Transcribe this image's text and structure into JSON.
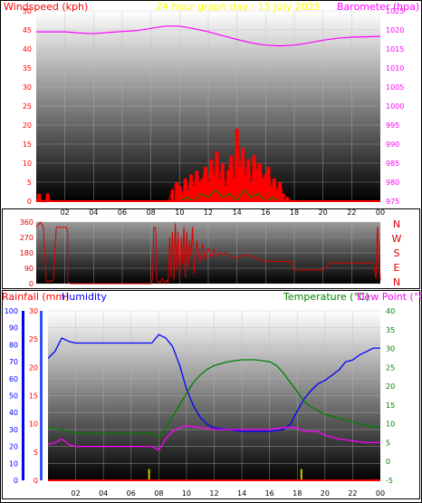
{
  "colors": {
    "wind": "#ff0000",
    "gust": "#008000",
    "barometer": "#ff00ff",
    "title": "#ffff00",
    "direction": "#dd0000",
    "humidity": "#0000ff",
    "temperature": "#008000",
    "dewpoint": "#ff00ff",
    "rain": "#ff0000",
    "rainfall_bar": "#d4c000",
    "frame_bg": "#ffffff"
  },
  "chart_data": [
    {
      "type": "line",
      "title": "24 hour graph day : 15 July 2025",
      "left_axis_label": "Windspeed (kph)",
      "right_axis_label": "Barometer (hpa)",
      "y_left_ticks": [
        0,
        5,
        10,
        15,
        20,
        25,
        30,
        35,
        40,
        45,
        50
      ],
      "y_left_range": [
        0,
        50
      ],
      "y_right_ticks": [
        975,
        980,
        985,
        990,
        995,
        1000,
        1005,
        1010,
        1015,
        1020,
        1025
      ],
      "y_right_range": [
        975,
        1025
      ],
      "x_ticks": [
        "02",
        "04",
        "06",
        "08",
        "10",
        "12",
        "14",
        "16",
        "18",
        "20",
        "22",
        "00"
      ],
      "x_range": [
        0,
        24
      ],
      "series": [
        {
          "key": "barometer",
          "axis": "right",
          "x": [
            0,
            1,
            2,
            3,
            4,
            5,
            6,
            7,
            8,
            9,
            10,
            11,
            12,
            13,
            14,
            15,
            16,
            17,
            18,
            19,
            20,
            21,
            22,
            23,
            24
          ],
          "y": [
            1019.5,
            1019.5,
            1019.5,
            1019.2,
            1019,
            1019.3,
            1019.6,
            1019.8,
            1020.4,
            1021,
            1021,
            1020.3,
            1019.5,
            1018.5,
            1017.5,
            1016.6,
            1016,
            1015.8,
            1016,
            1016.6,
            1017.3,
            1017.8,
            1018.1,
            1018.2,
            1018.3
          ]
        },
        {
          "key": "windspeed",
          "axis": "left",
          "x": [
            0,
            0.2,
            0.4,
            0.6,
            0.8,
            1.0,
            1.2,
            9.2,
            9.5,
            9.8,
            10,
            10.2,
            10.4,
            10.6,
            10.8,
            11,
            11.2,
            11.4,
            11.6,
            11.8,
            12,
            12.2,
            12.4,
            12.6,
            12.8,
            13,
            13.2,
            13.4,
            13.6,
            13.8,
            14,
            14.2,
            14.4,
            14.6,
            14.8,
            15,
            15.2,
            15.4,
            15.6,
            15.8,
            16,
            16.2,
            16.4,
            16.6,
            16.8,
            17,
            17.2,
            17.5,
            17.8,
            18,
            24
          ],
          "y": [
            0,
            2,
            0,
            0,
            2,
            0,
            0,
            0,
            3,
            5,
            4,
            2,
            6,
            3,
            7,
            4,
            8,
            5,
            6,
            9,
            5,
            11,
            7,
            13,
            6,
            10,
            4,
            8,
            12,
            6,
            19,
            9,
            14,
            7,
            11,
            5,
            12,
            8,
            10,
            6,
            7,
            9,
            4,
            6,
            3,
            5,
            2,
            1,
            0,
            0,
            0
          ]
        },
        {
          "key": "gust",
          "axis": "left",
          "x": [
            10,
            10.5,
            11,
            11.5,
            12,
            12.5,
            13,
            13.5,
            14,
            14.5,
            15,
            15.5,
            16,
            16.5,
            17
          ],
          "y": [
            0,
            1,
            0,
            2,
            1,
            3,
            1,
            2,
            0,
            3,
            1,
            2,
            0,
            1,
            0
          ]
        }
      ]
    },
    {
      "type": "line",
      "title": "",
      "right_axis_label": "N W S E N",
      "y_left_ticks": [
        0,
        90,
        180,
        270,
        360
      ],
      "y_left_range": [
        0,
        360
      ],
      "x_range": [
        0,
        24
      ],
      "compass": [
        "N",
        "W",
        "S",
        "E",
        "N"
      ],
      "series": [
        {
          "key": "wind_direction",
          "x": [
            0,
            0.3,
            0.5,
            0.7,
            1.2,
            1.4,
            2.1,
            2.2,
            2.2,
            2.4,
            6.8,
            6.9,
            7.0,
            7.3,
            7.6,
            8.0,
            8.1,
            8.2,
            8.3,
            8.35,
            8.4,
            8.6,
            8.8,
            9.0,
            9.1,
            9.2,
            9.3,
            9.4,
            9.5,
            9.6,
            9.7,
            9.8,
            9.9,
            10,
            10.1,
            10.2,
            10.3,
            10.4,
            10.5,
            10.6,
            10.7,
            10.8,
            10.9,
            11,
            11.2,
            11.4,
            11.6,
            11.8,
            12,
            12.2,
            12.4,
            12.6,
            12.8,
            13,
            13.2,
            13.5,
            14,
            14.5,
            15,
            16,
            17,
            17.8,
            18,
            18.3,
            18.7,
            19,
            19.5,
            20,
            20.5,
            21,
            21.5,
            22,
            22.5,
            23,
            23.5,
            23.7,
            23.8,
            24
          ],
          "y": [
            330,
            360,
            330,
            10,
            20,
            330,
            330,
            300,
            10,
            0,
            0,
            0,
            0,
            0,
            0,
            0,
            20,
            330,
            330,
            300,
            20,
            0,
            30,
            0,
            20,
            10,
            270,
            40,
            300,
            20,
            350,
            80,
            300,
            30,
            270,
            120,
            330,
            40,
            300,
            90,
            250,
            160,
            330,
            60,
            250,
            120,
            230,
            140,
            210,
            150,
            200,
            160,
            180,
            170,
            180,
            160,
            150,
            170,
            160,
            130,
            130,
            130,
            80,
            80,
            80,
            80,
            80,
            80,
            120,
            120,
            120,
            120,
            120,
            120,
            120,
            30,
            330,
            20
          ]
        }
      ]
    },
    {
      "type": "line",
      "title": "",
      "left_axis_label_1": "Rainfall (mm)",
      "left_axis_label_2": "Humidity",
      "right_axis_label_1": "Temperature (°C)",
      "right_axis_label_2": "Dew Point (°C)",
      "humidity_ticks": [
        0,
        10,
        20,
        30,
        40,
        50,
        60,
        70,
        80,
        90,
        100
      ],
      "rain_ticks": [
        0,
        5,
        10,
        15,
        20,
        25,
        30
      ],
      "temp_ticks": [
        -5,
        0,
        5,
        10,
        15,
        20,
        25,
        30,
        35,
        40
      ],
      "temp_range": [
        -5,
        40
      ],
      "humidity_range": [
        0,
        100
      ],
      "rain_range": [
        0,
        30
      ],
      "x_ticks": [
        "02",
        "04",
        "06",
        "08",
        "10",
        "12",
        "14",
        "16",
        "18",
        "20",
        "22",
        "00"
      ],
      "x_range": [
        0,
        24
      ],
      "series": [
        {
          "key": "humidity",
          "axis": "humidity",
          "x": [
            0,
            0.5,
            1,
            1.5,
            2,
            3,
            4,
            5,
            6,
            7,
            7.5,
            8,
            8.5,
            9,
            9.5,
            10,
            10.5,
            11,
            11.5,
            12,
            13,
            14,
            15,
            16,
            17,
            17.5,
            18,
            18.5,
            19,
            19.5,
            20,
            20.5,
            21,
            21.5,
            22,
            22.5,
            23,
            23.5,
            24
          ],
          "y": [
            72,
            76,
            84,
            82,
            81,
            81,
            81,
            81,
            81,
            81,
            81,
            86,
            84,
            79,
            68,
            54,
            44,
            37,
            33,
            31,
            30,
            29,
            29,
            29,
            30,
            33,
            41,
            48,
            53,
            57,
            59,
            62,
            65,
            70,
            71,
            74,
            76,
            78,
            78
          ]
        },
        {
          "key": "temperature",
          "axis": "temp",
          "x": [
            0,
            1,
            2,
            3,
            4,
            5,
            6,
            7,
            7.5,
            8,
            8.5,
            9,
            9.5,
            10,
            10.5,
            11,
            11.5,
            12,
            13,
            14,
            15,
            16,
            16.5,
            17,
            17.5,
            18,
            18.5,
            19,
            20,
            21,
            22,
            23,
            24
          ],
          "y": [
            9,
            8.5,
            7.5,
            7.5,
            7.5,
            7.5,
            7.5,
            7.5,
            7.5,
            6.5,
            9,
            12,
            15,
            18,
            21,
            23,
            24.5,
            25.5,
            26.5,
            27,
            27,
            26.5,
            25.5,
            23.5,
            21,
            18.5,
            16,
            14.5,
            12.5,
            11.5,
            10.5,
            9.5,
            9
          ]
        },
        {
          "key": "dewpoint",
          "axis": "temp",
          "x": [
            0,
            0.5,
            1,
            1.5,
            2,
            3,
            4,
            5,
            6,
            7,
            7.5,
            8,
            8.5,
            9,
            9.5,
            10,
            11,
            12,
            13,
            14,
            15,
            16,
            17,
            18,
            18.5,
            19,
            19.5,
            20,
            21,
            22,
            23,
            24
          ],
          "y": [
            4.5,
            5,
            6,
            4.5,
            4,
            4,
            4,
            4,
            4,
            4,
            4,
            3,
            6,
            8,
            9,
            9.5,
            9,
            8.5,
            8.5,
            8.5,
            8.5,
            8.5,
            9,
            9,
            8,
            8,
            8,
            7,
            6,
            5.5,
            5,
            5
          ]
        },
        {
          "key": "rainfall_rate_bars",
          "axis": "rain",
          "x": [
            7.3,
            18.3
          ],
          "y": [
            2,
            2
          ]
        }
      ]
    }
  ]
}
